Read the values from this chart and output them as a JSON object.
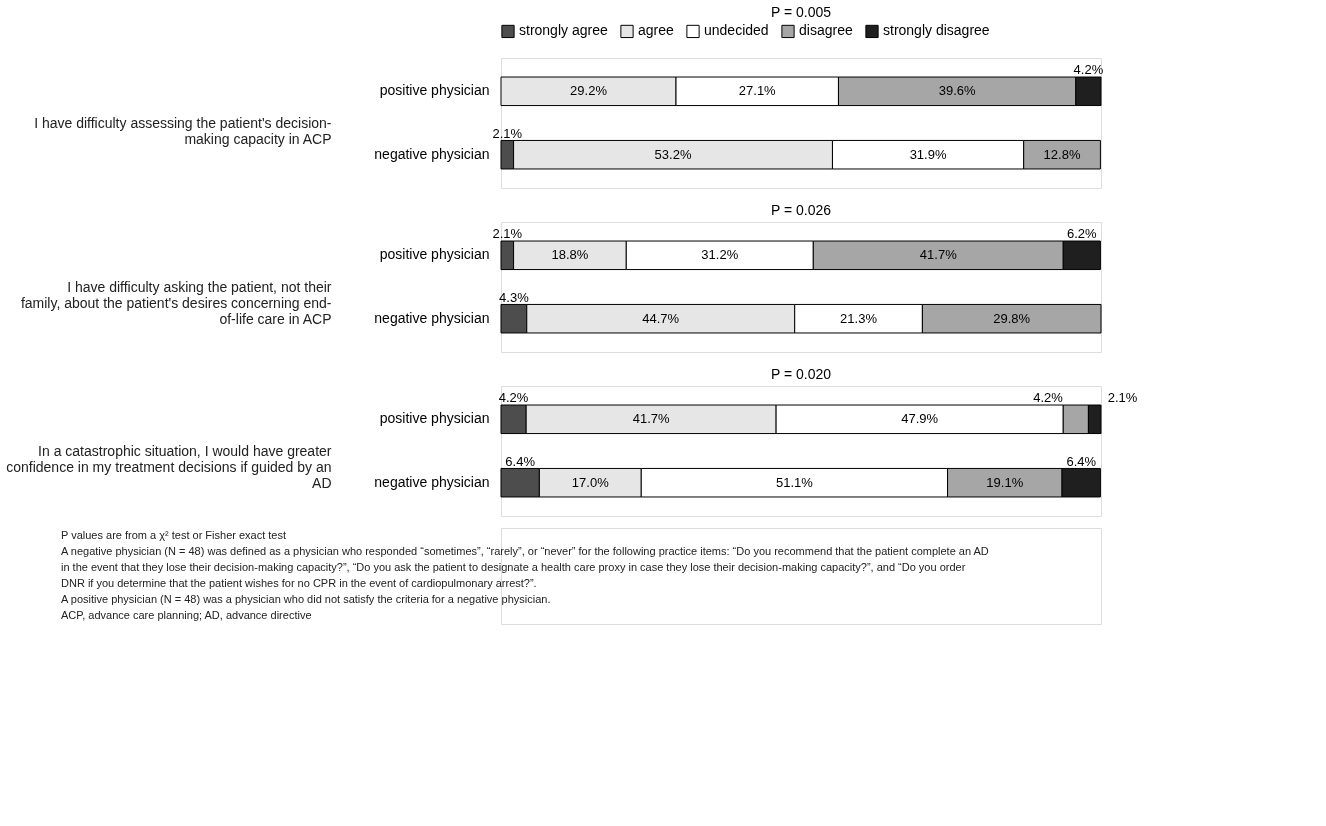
{
  "chart_data": [
    {
      "type": "bar",
      "orientation": "horizontal",
      "stacked": true,
      "legend": "top",
      "title": "P = 0.005",
      "ylabel": "I have difficulty assessing the patient's decision-making capacity in ACP",
      "categories": [
        "positive physician",
        "negative physician"
      ],
      "series": [
        {
          "name": "strongly agree",
          "color": "#4d4d4d",
          "values": [
            null,
            2.1
          ],
          "value_labels": [
            null,
            "2.1%"
          ]
        },
        {
          "name": "agree",
          "color": "#e6e6e6",
          "values": [
            29.2,
            53.2
          ],
          "value_labels": [
            "29.2%",
            "53.2%"
          ]
        },
        {
          "name": "undecided",
          "color": "#ffffff",
          "values": [
            27.1,
            31.9
          ],
          "value_labels": [
            "27.1%",
            "31.9%"
          ]
        },
        {
          "name": "disagree",
          "color": "#a6a6a6",
          "values": [
            39.6,
            12.8
          ],
          "value_labels": [
            "39.6%",
            "12.8%"
          ]
        },
        {
          "name": "strongly disagree",
          "color": "#1f1f1f",
          "values": [
            4.2,
            null
          ],
          "value_labels": [
            "4.2%",
            null
          ]
        }
      ]
    },
    {
      "type": "bar",
      "orientation": "horizontal",
      "stacked": true,
      "title": "P = 0.026",
      "ylabel": "I have difficulty asking the patient, not their family, about the patient's desires concerning end-of-life care in ACP",
      "categories": [
        "positive physician",
        "negative physician"
      ],
      "series": [
        {
          "color": "#4d4d4d",
          "values": [
            2.1,
            4.3
          ],
          "value_labels": [
            "2.1%",
            "4.3%"
          ]
        },
        {
          "color": "#e6e6e6",
          "values": [
            18.8,
            44.7
          ],
          "value_labels": [
            "18.8%",
            "44.7%"
          ]
        },
        {
          "color": "#ffffff",
          "values": [
            31.2,
            21.3
          ],
          "value_labels": [
            "31.2%",
            "21.3%"
          ]
        },
        {
          "color": "#a6a6a6",
          "values": [
            41.7,
            29.8
          ],
          "value_labels": [
            "41.7%",
            "29.8%"
          ]
        },
        {
          "color": "#1f1f1f",
          "values": [
            6.2,
            null
          ],
          "value_labels": [
            "6.2%",
            null
          ]
        }
      ]
    },
    {
      "type": "bar",
      "orientation": "horizontal",
      "stacked": true,
      "title": "P = 0.020",
      "ylabel": "In a catastrophic situation, I would have greater confidence in my treatment decisions if guided by an AD",
      "categories": [
        "positive physician",
        "negative physician"
      ],
      "series": [
        {
          "color": "#4d4d4d",
          "values": [
            4.2,
            6.4
          ],
          "value_labels": [
            "4.2%",
            "6.4%"
          ]
        },
        {
          "color": "#e6e6e6",
          "values": [
            41.7,
            17.0
          ],
          "value_labels": [
            "41.7%",
            "17.0%"
          ]
        },
        {
          "color": "#ffffff",
          "values": [
            47.9,
            51.1
          ],
          "value_labels": [
            "47.9%",
            "51.1%"
          ]
        },
        {
          "color": "#a6a6a6",
          "values": [
            4.2,
            19.1
          ],
          "value_labels": [
            "4.2%",
            "19.1%"
          ]
        },
        {
          "color": "#1f1f1f",
          "values": [
            2.1,
            6.4
          ],
          "value_labels": [
            "2.1%",
            "6.4%"
          ]
        }
      ],
      "annotations": [
        "P values are from a χ² test or Fisher exact test",
        "A negative physician (N = 48) was defined as a physician who responded “sometimes”, “rarely”, or “never” for the following practice items: “Do you recommend that the patient complete an AD in the event that they lose their decision-making capacity?”, “Do you ask the patient to designate a health care proxy in case they lose their decision-making capacity?”, and “Do you order DNR if you determine that the patient wishes for no CPR in the event of cardiopulmonary arrest?”.",
        "A positive physician (N = 48) was a physician who did not satisfy the criteria for a negative physician.",
        "ACP, advance care planning; AD, advance directive"
      ]
    }
  ]
}
